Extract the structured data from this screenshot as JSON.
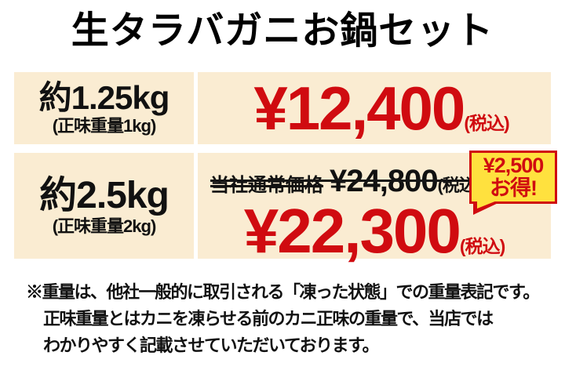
{
  "title": "生タラバガニお鍋セット",
  "colors": {
    "cream": "#faecd2",
    "red": "#d00b10",
    "yellow": "#ffe13e",
    "ink": "#111111"
  },
  "rows": [
    {
      "weight": "約1.25kg",
      "net": "(正味重量1kg)",
      "price": "¥12,400",
      "tax": "(税込)"
    },
    {
      "weight": "約2.5kg",
      "net": "(正味重量2kg)",
      "regular_label": "当社通常価格",
      "regular_price": "¥24,800",
      "regular_tax": "(税込)",
      "price": "¥22,300",
      "tax": "(税込)",
      "badge_amount": "¥2,500",
      "badge_label": "お得!"
    }
  ],
  "note": {
    "lines": [
      "※重量は、他社一般的に取引される「凍った状態」での重量表記です。",
      "正味重量とはカニを凍らせる前のカニ正味の重量で、当店では",
      "わかりやすく記載させていただいております。"
    ]
  }
}
